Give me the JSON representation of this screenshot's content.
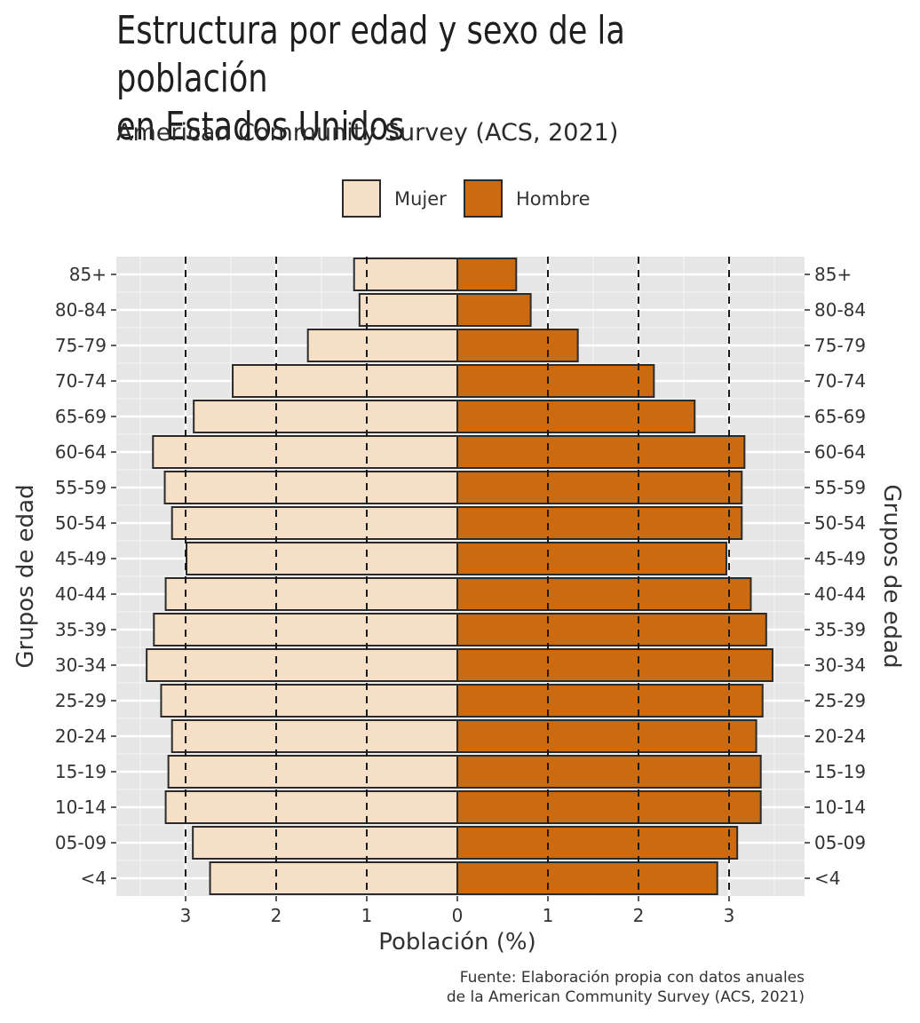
{
  "title_line1": "Estructura por edad y sexo de la población",
  "title_line2": "en Estados Unidos",
  "subtitle": "American Community Survey (ACS, 2021)",
  "caption_line1": "Fuente: Elaboración propia con datos anuales",
  "caption_line2": "de la American Community Survey (ACS, 2021)",
  "colors": {
    "mujer": "#F5DFC6",
    "hombre": "#CC6A10",
    "panel": "#E6E6E6",
    "outline": "#2b2b2b"
  },
  "chart_data": {
    "type": "bar",
    "orientation": "horizontal-population-pyramid",
    "categories": [
      "85+",
      "80-84",
      "75-79",
      "70-74",
      "65-69",
      "60-64",
      "55-59",
      "50-54",
      "45-49",
      "40-44",
      "35-39",
      "30-34",
      "25-29",
      "20-24",
      "15-19",
      "10-14",
      "05-09",
      "<4"
    ],
    "series": [
      {
        "name": "Mujer",
        "side": "left",
        "values": [
          1.14,
          1.08,
          1.65,
          2.48,
          2.91,
          3.36,
          3.23,
          3.15,
          2.99,
          3.22,
          3.35,
          3.43,
          3.27,
          3.15,
          3.19,
          3.22,
          2.92,
          2.73
        ]
      },
      {
        "name": "Hombre",
        "side": "right",
        "values": [
          0.65,
          0.81,
          1.33,
          2.17,
          2.62,
          3.17,
          3.14,
          3.14,
          2.97,
          3.24,
          3.41,
          3.48,
          3.37,
          3.3,
          3.35,
          3.35,
          3.09,
          2.87
        ]
      }
    ],
    "xlabel": "Población (%)",
    "ylabel": "Grupos de edad",
    "xlim": [
      -3.8,
      3.8
    ],
    "xticks": [
      -3,
      -2,
      -1,
      0,
      1,
      2,
      3
    ],
    "xtick_labels": [
      "3",
      "2",
      "1",
      "0",
      "1",
      "2",
      "3"
    ],
    "reference_lines": [
      -3,
      -2,
      -1,
      1,
      2,
      3
    ],
    "legend": {
      "position": "top",
      "entries": [
        "Mujer",
        "Hombre"
      ]
    },
    "grid": true
  }
}
